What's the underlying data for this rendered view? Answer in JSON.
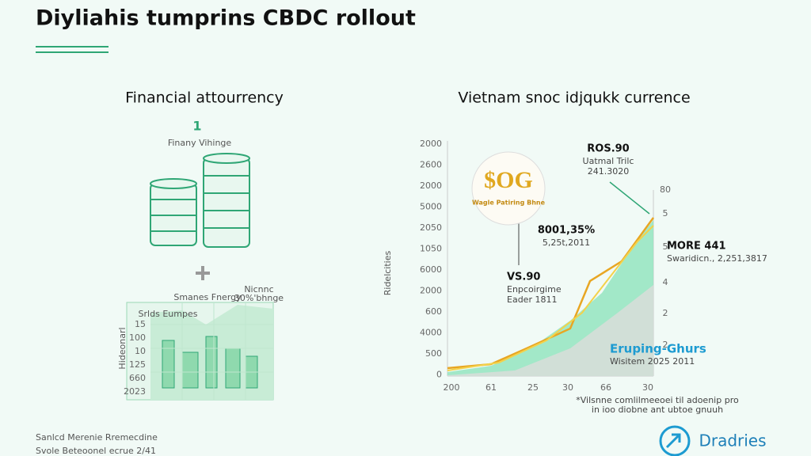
{
  "header": {
    "title": "Diyliahis tumprins CBDC rollout"
  },
  "left": {
    "heading": "Financial attourrency",
    "icon_label": "1",
    "caption": "Finany Vihinge",
    "map": {
      "labels": [
        "Smanes Fnergy",
        "Nicnnc",
        "30%'bhnge",
        "Srlds Eumpes"
      ],
      "axis_title": "Hideonarl",
      "y_labels": [
        "15",
        "100",
        "10",
        "125",
        "660",
        "2023"
      ]
    }
  },
  "right": {
    "heading": "Vietnam snoc idjqukk currence",
    "badge": {
      "title": "$OG",
      "subtitle": "Wagle Patiring Bhne"
    },
    "axis_title": "Ridelcities",
    "y_labels": [
      "2000",
      "2600",
      "2000",
      "5000",
      "2050",
      "1050",
      "6000",
      "2000",
      "600",
      "4000",
      "500",
      "0"
    ],
    "x_labels": [
      "200",
      "61",
      "25",
      "30",
      "66",
      "30"
    ],
    "y2_labels": [
      "80",
      "5",
      "5",
      "4",
      "2",
      "2"
    ],
    "annotations": [
      {
        "title": "ROS.90",
        "lines": [
          "Uatmal Trilc",
          "241.3020"
        ]
      },
      {
        "title": "8001,35%",
        "lines": [
          "5,25t,2011"
        ]
      },
      {
        "title": "MORE 441",
        "lines": [
          "Swaridicn., 2,251,3817"
        ]
      },
      {
        "title": "VS.90",
        "lines": [
          "Enpcoirgime",
          "Eader 1811"
        ]
      },
      {
        "title": "Eruping-Ghurs",
        "lines": [
          "Wisitem 2025 2011"
        ]
      }
    ],
    "footnote": [
      "*Vilsnne comlilmeeoei til adoenip pro",
      "in ioo diobne ant ubtoe gnuuh"
    ]
  },
  "footer": {
    "lines": [
      "Sanlcd Merenie Rremecdine",
      "Svole Beteoonel ecrue 2/41"
    ],
    "logo": "Dradries"
  }
}
